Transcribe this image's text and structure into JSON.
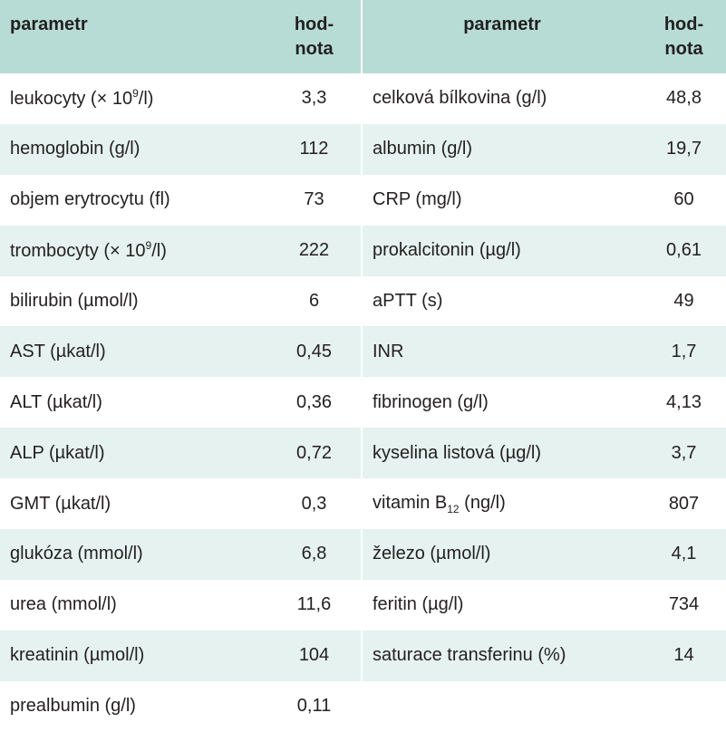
{
  "table": {
    "headers": {
      "param_left": "parametr",
      "value_left": "hod-\nnota",
      "param_right": "parametr",
      "value_right": "hod-\nnota"
    },
    "rows": [
      {
        "lp": "leukocyty (× 10",
        "lsup": "9",
        "lp2": "/l)",
        "lv": "3,3",
        "rp": "celková bílkovina (g/l)",
        "rv": "48,8"
      },
      {
        "lp": "hemoglobin (g/l)",
        "lv": "112",
        "rp": "albumin (g/l)",
        "rv": "19,7"
      },
      {
        "lp": "objem erytrocytu (fl)",
        "lv": "73",
        "rp": "CRP (mg/l)",
        "rv": "60"
      },
      {
        "lp": "trombocyty (× 10",
        "lsup": "9",
        "lp2": "/l)",
        "lv": "222",
        "rp": "prokalcitonin (µg/l)",
        "rv": "0,61"
      },
      {
        "lp": "bilirubin (µmol/l)",
        "lv": "6",
        "rp": "aPTT (s)",
        "rv": "49"
      },
      {
        "lp": "AST (µkat/l)",
        "lv": "0,45",
        "rp": "INR",
        "rv": "1,7"
      },
      {
        "lp": "ALT (µkat/l)",
        "lv": "0,36",
        "rp": "fibrinogen (g/l)",
        "rv": "4,13"
      },
      {
        "lp": "ALP (µkat/l)",
        "lv": "0,72",
        "rp": "kyselina listová (µg/l)",
        "rv": "3,7"
      },
      {
        "lp": "GMT (µkat/l)",
        "lv": "0,3",
        "rp": "vitamin B",
        "rsub": "12",
        "rp2": " (ng/l)",
        "rv": "807"
      },
      {
        "lp": "glukóza (mmol/l)",
        "lv": "6,8",
        "rp": "železo (µmol/l)",
        "rv": "4,1"
      },
      {
        "lp": "urea (mmol/l)",
        "lv": "11,6",
        "rp": "feritin (µg/l)",
        "rv": "734"
      },
      {
        "lp": "kreatinin (µmol/l)",
        "lv": "104",
        "rp": "saturace transferinu (%)",
        "rv": "14"
      },
      {
        "lp": "prealbumin (g/l)",
        "lv": "0,11",
        "rp": "",
        "rv": ""
      }
    ]
  }
}
